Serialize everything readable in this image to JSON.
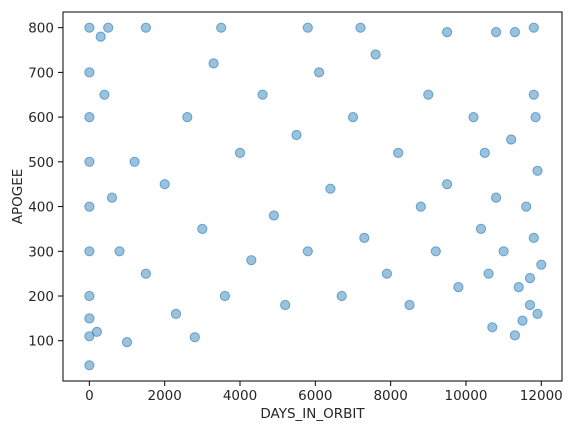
{
  "chart_data": {
    "type": "scatter",
    "title": "",
    "xlabel": "DAYS_IN_ORBIT",
    "ylabel": "APOGEE",
    "xlim": [
      -700,
      12550
    ],
    "ylim": [
      10,
      835
    ],
    "xticks": [
      0,
      2000,
      4000,
      6000,
      8000,
      10000,
      12000
    ],
    "yticks": [
      100,
      200,
      300,
      400,
      500,
      600,
      700,
      800
    ],
    "grid": false,
    "legend": "none",
    "marker_color": "#1f77b4",
    "marker_alpha": 0.45,
    "series": [
      {
        "points": [
          [
            0,
            45
          ],
          [
            1000,
            97
          ],
          [
            2800,
            108
          ],
          [
            10700,
            130
          ],
          [
            11300,
            112
          ],
          [
            11500,
            145
          ],
          [
            11900,
            160
          ],
          [
            11700,
            240
          ],
          [
            12000,
            270
          ],
          [
            11800,
            330
          ],
          [
            11900,
            480
          ],
          [
            11850,
            600
          ],
          [
            11800,
            650
          ],
          [
            11800,
            800
          ],
          [
            11300,
            790
          ],
          [
            10800,
            790
          ],
          [
            9500,
            790
          ],
          [
            7200,
            800
          ],
          [
            5800,
            800
          ],
          [
            3500,
            800
          ],
          [
            1500,
            800
          ],
          [
            500,
            800
          ],
          [
            0,
            800
          ],
          [
            0,
            700
          ],
          [
            0,
            600
          ],
          [
            0,
            500
          ],
          [
            0,
            400
          ],
          [
            0,
            300
          ],
          [
            0,
            200
          ],
          [
            0,
            150
          ],
          [
            0,
            110
          ],
          [
            200,
            120
          ],
          [
            300,
            780
          ],
          [
            400,
            650
          ],
          [
            600,
            420
          ],
          [
            800,
            300
          ],
          [
            1200,
            500
          ],
          [
            1500,
            250
          ],
          [
            2000,
            450
          ],
          [
            2300,
            160
          ],
          [
            2600,
            600
          ],
          [
            3000,
            350
          ],
          [
            3300,
            720
          ],
          [
            3600,
            200
          ],
          [
            4000,
            520
          ],
          [
            4300,
            280
          ],
          [
            4600,
            650
          ],
          [
            4900,
            380
          ],
          [
            5200,
            180
          ],
          [
            5500,
            560
          ],
          [
            5800,
            300
          ],
          [
            6100,
            700
          ],
          [
            6400,
            440
          ],
          [
            6700,
            200
          ],
          [
            7000,
            600
          ],
          [
            7300,
            330
          ],
          [
            7600,
            740
          ],
          [
            7900,
            250
          ],
          [
            8200,
            520
          ],
          [
            8500,
            180
          ],
          [
            8800,
            400
          ],
          [
            9000,
            650
          ],
          [
            9200,
            300
          ],
          [
            9500,
            450
          ],
          [
            9800,
            220
          ],
          [
            10200,
            600
          ],
          [
            10400,
            350
          ],
          [
            10500,
            520
          ],
          [
            10600,
            250
          ],
          [
            10800,
            420
          ],
          [
            11000,
            300
          ],
          [
            11200,
            550
          ],
          [
            11400,
            220
          ],
          [
            11600,
            400
          ],
          [
            11700,
            180
          ]
        ]
      }
    ]
  }
}
